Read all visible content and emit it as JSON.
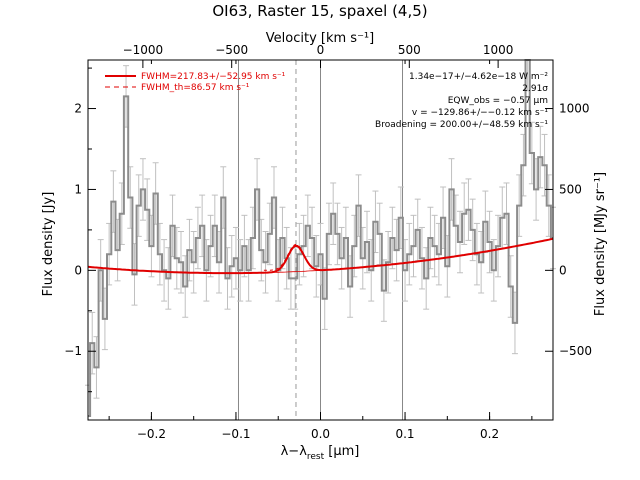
{
  "chart_data": {
    "type": "line",
    "title": "OI63, Raster 15, spaxel (4,5)",
    "xlabel": "λ−λ_rest [µm]",
    "xlabel_main": "λ−λ",
    "xlabel_sub": "rest",
    "xlabel_unit": " [µm]",
    "ylabel": "Flux density [Jy]",
    "top_xlabel": "Velocity [km s⁻¹]",
    "right_ylabel": "Flux density [MJy sr⁻¹]",
    "xlim": [
      -0.275,
      0.275
    ],
    "ylim": [
      -1.85,
      2.6
    ],
    "x_ticks": [
      -0.2,
      -0.1,
      0.0,
      0.1,
      0.2
    ],
    "x_tick_labels": [
      "−0.2",
      "−0.1",
      "0.0",
      "0.1",
      "0.2"
    ],
    "y_ticks": [
      -1,
      0,
      1,
      2
    ],
    "y_tick_labels": [
      "−1",
      "0",
      "1",
      "2"
    ],
    "top_ticks_velocity": [
      -1000,
      -500,
      0,
      500,
      1000
    ],
    "top_tick_labels": [
      "−1000",
      "−500",
      "0",
      "500",
      "1000"
    ],
    "right_ticks": [
      -500,
      0,
      500,
      1000
    ],
    "right_tick_labels": [
      "−500",
      "0",
      "500",
      "1000"
    ],
    "right_scale_per_jy": 500,
    "velocity_per_um": 4760,
    "vertical_lines_x": [
      -0.097,
      0.0,
      0.097
    ],
    "dashed_line_x": -0.029,
    "legend": [
      {
        "label": "FWHM=217.83+/−52.95 km s⁻¹",
        "style": "solid",
        "color": "#e00000"
      },
      {
        "label": "FWHM_th=86.57 km s⁻¹",
        "style": "dashed",
        "color": "#e00000"
      }
    ],
    "annotations": [
      "1.34e−17+/−4.62e−18 W m⁻²",
      "2.91σ",
      "EQW_obs = −0.57 µm",
      "v = −129.86+/−−0.12 km s⁻¹",
      "Broadening = 200.00+/−48.59 km s⁻¹"
    ],
    "spectrum_x": [
      -0.275,
      -0.27,
      -0.265,
      -0.26,
      -0.255,
      -0.25,
      -0.245,
      -0.24,
      -0.235,
      -0.23,
      -0.225,
      -0.22,
      -0.215,
      -0.21,
      -0.205,
      -0.2,
      -0.195,
      -0.19,
      -0.185,
      -0.18,
      -0.175,
      -0.17,
      -0.165,
      -0.16,
      -0.155,
      -0.15,
      -0.145,
      -0.14,
      -0.135,
      -0.13,
      -0.125,
      -0.12,
      -0.115,
      -0.11,
      -0.105,
      -0.1,
      -0.095,
      -0.09,
      -0.085,
      -0.08,
      -0.075,
      -0.07,
      -0.065,
      -0.06,
      -0.055,
      -0.05,
      -0.045,
      -0.04,
      -0.035,
      -0.03,
      -0.025,
      -0.02,
      -0.015,
      -0.01,
      -0.005,
      0.0,
      0.005,
      0.01,
      0.015,
      0.02,
      0.025,
      0.03,
      0.035,
      0.04,
      0.045,
      0.05,
      0.055,
      0.06,
      0.065,
      0.07,
      0.075,
      0.08,
      0.085,
      0.09,
      0.095,
      0.1,
      0.105,
      0.11,
      0.115,
      0.12,
      0.125,
      0.13,
      0.135,
      0.14,
      0.145,
      0.15,
      0.155,
      0.16,
      0.165,
      0.17,
      0.175,
      0.18,
      0.185,
      0.19,
      0.195,
      0.2,
      0.205,
      0.21,
      0.215,
      0.22,
      0.225,
      0.23,
      0.235,
      0.24,
      0.245,
      0.25,
      0.255,
      0.26,
      0.265,
      0.27,
      0.275
    ],
    "spectrum_y": [
      -1.8,
      -0.9,
      -1.2,
      0.0,
      -0.6,
      0.2,
      0.85,
      0.25,
      0.7,
      2.15,
      0.9,
      -0.05,
      0.8,
      1.0,
      0.75,
      0.3,
      0.95,
      0.2,
      0.0,
      -0.1,
      0.55,
      0.15,
      0.1,
      -0.2,
      0.25,
      0.1,
      0.4,
      0.55,
      0.0,
      0.3,
      0.55,
      0.1,
      0.9,
      -0.1,
      0.05,
      0.15,
      0.0,
      0.3,
      0.0,
      0.4,
      1.0,
      0.25,
      0.1,
      0.45,
      0.9,
      0.0,
      0.4,
      0.15,
      -0.1,
      -0.1,
      0.2,
      0.3,
      0.55,
      0.4,
      0.05,
      0.2,
      -0.35,
      0.45,
      0.7,
      0.45,
      0.15,
      0.4,
      -0.2,
      0.3,
      0.8,
      0.15,
      0.35,
      0.0,
      0.6,
      0.45,
      -0.25,
      0.1,
      0.4,
      0.25,
      0.65,
      0.0,
      0.2,
      0.3,
      0.5,
      0.15,
      -0.1,
      0.4,
      0.3,
      0.2,
      0.65,
      0.05,
      1.0,
      0.55,
      0.35,
      0.7,
      0.75,
      0.5,
      0.2,
      0.1,
      0.6,
      0.35,
      0.0,
      0.3,
      0.65,
      0.7,
      -0.2,
      -0.65,
      0.8,
      1.3,
      2.6,
      1.45,
      1.0,
      1.4,
      1.3,
      0.8,
      0.4
    ],
    "spectrum_err": 0.38,
    "fit_baseline": {
      "c0": 0.0,
      "c1": 0.63,
      "c2": 2.87
    },
    "fit_gaussian": {
      "center": -0.029,
      "amplitude": 0.32,
      "sigma": 0.0095
    }
  }
}
